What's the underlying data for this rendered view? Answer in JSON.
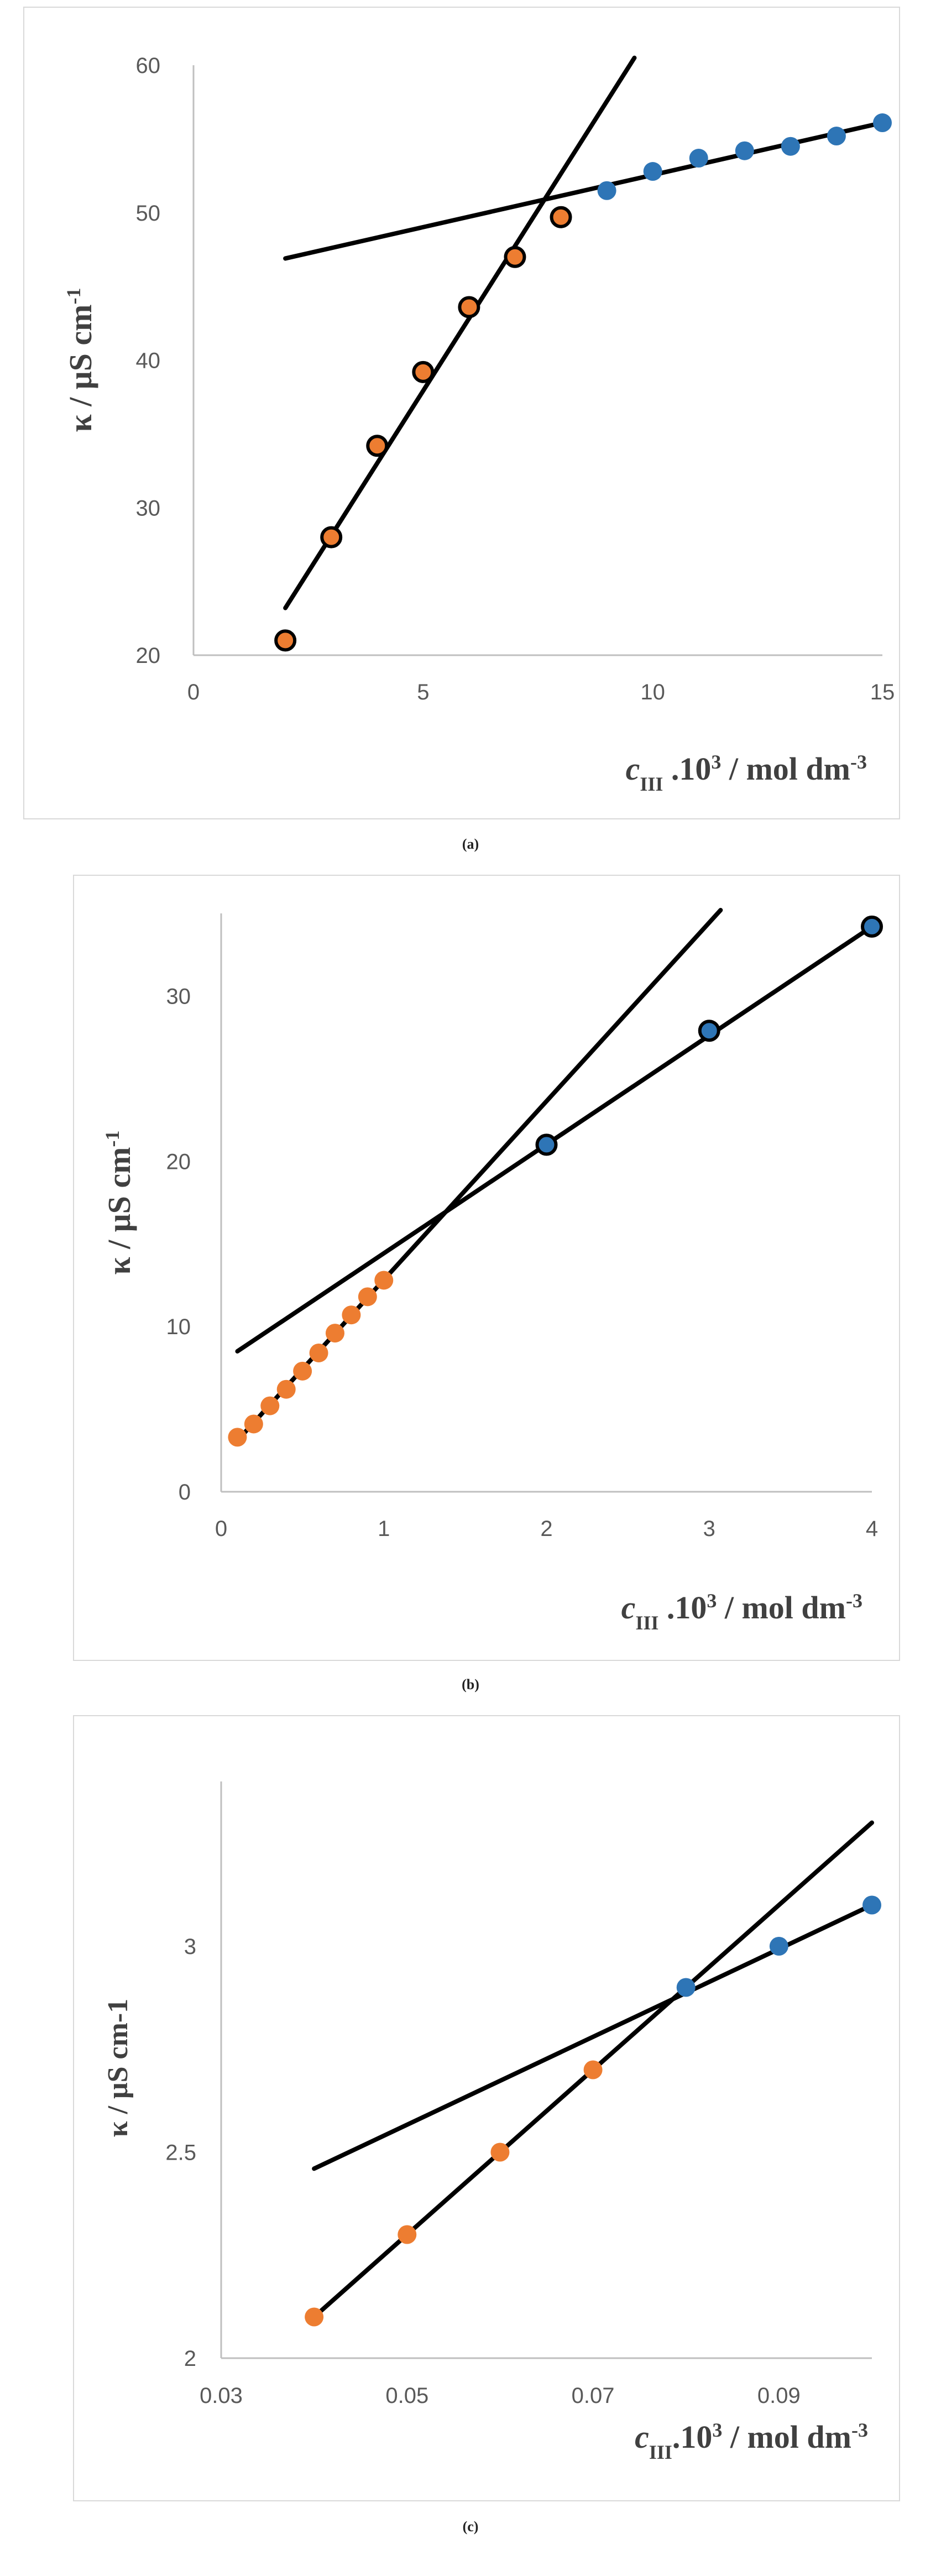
{
  "chart_data": [
    {
      "type": "scatter",
      "panel_label": "(a)",
      "xlim": [
        0,
        15
      ],
      "ylim": [
        20,
        60
      ],
      "x_ticks": [
        0,
        5,
        10,
        15
      ],
      "y_ticks": [
        20,
        30,
        40,
        50,
        60
      ],
      "y_axis_label": {
        "pre": "κ / μS cm",
        "sup": "-1"
      },
      "x_axis_label": {
        "c": "c",
        "sub": "III",
        "mid": " .10",
        "sup1": "3",
        "unit": " / mol dm",
        "sup2": "-3"
      },
      "grid": false,
      "series": [
        {
          "color": "#ED7D31",
          "edge": "#000000",
          "x": [
            2,
            3,
            4,
            5,
            6,
            7,
            8
          ],
          "y": [
            21,
            28,
            34.2,
            39.2,
            43.6,
            47,
            49.7
          ]
        },
        {
          "color": "#2E75B6",
          "edge": "#2E75B6",
          "x": [
            9,
            10,
            11,
            12,
            13,
            14,
            15
          ],
          "y": [
            51.5,
            52.8,
            53.7,
            54.2,
            54.5,
            55.2,
            56.1
          ]
        }
      ],
      "trendlines": [
        {
          "x": [
            2,
            9.6
          ],
          "y": [
            23.2,
            60.5
          ]
        },
        {
          "x": [
            2,
            15
          ],
          "y": [
            46.9,
            56.1
          ]
        }
      ]
    },
    {
      "type": "scatter",
      "panel_label": "(b)",
      "xlim": [
        0,
        4
      ],
      "ylim": [
        0,
        35
      ],
      "x_ticks": [
        0,
        1,
        2,
        3,
        4
      ],
      "y_ticks": [
        0,
        10,
        20,
        30
      ],
      "y_axis_label": {
        "pre": "κ / μS cm",
        "sup": "-1"
      },
      "x_axis_label": {
        "c": "c",
        "sub": "III",
        "mid": " .10",
        "sup1": "3",
        "unit": " / mol dm",
        "sup2": "-3"
      },
      "grid": false,
      "series": [
        {
          "color": "#ED7D31",
          "edge": "#ED7D31",
          "x": [
            0.1,
            0.2,
            0.3,
            0.4,
            0.5,
            0.6,
            0.7,
            0.8,
            0.9,
            1.0
          ],
          "y": [
            3.3,
            4.1,
            5.2,
            6.2,
            7.3,
            8.4,
            9.6,
            10.7,
            11.8,
            12.8
          ]
        },
        {
          "color": "#2E75B6",
          "edge": "#000000",
          "x": [
            2,
            3,
            4
          ],
          "y": [
            21,
            27.9,
            34.2
          ]
        }
      ],
      "trendlines": [
        {
          "x": [
            0.1,
            3.07
          ],
          "y": [
            3.1,
            35.2
          ]
        },
        {
          "x": [
            0.1,
            4
          ],
          "y": [
            8.5,
            34.2
          ]
        }
      ]
    },
    {
      "type": "scatter",
      "panel_label": "(c)",
      "xlim": [
        0.03,
        0.1
      ],
      "ylim": [
        2,
        3.4
      ],
      "x_ticks": [
        "0.03",
        "0.05",
        "0.07",
        "0.09"
      ],
      "x_tick_values": [
        0.03,
        0.05,
        0.07,
        0.09
      ],
      "y_ticks": [
        "2",
        "2.5",
        "3"
      ],
      "y_tick_values": [
        2,
        2.5,
        3
      ],
      "y_axis_label": {
        "pre": "κ   / μS cm-1",
        "sup": ""
      },
      "x_axis_label": {
        "c": "c",
        "sub": "III",
        "mid": ".10",
        "sup1": "3",
        "unit": " / mol dm",
        "sup2": "-3"
      },
      "grid": false,
      "series": [
        {
          "color": "#ED7D31",
          "edge": "#ED7D31",
          "x": [
            0.04,
            0.05,
            0.06,
            0.07
          ],
          "y": [
            2.1,
            2.3,
            2.5,
            2.7
          ]
        },
        {
          "color": "#2E75B6",
          "edge": "#2E75B6",
          "x": [
            0.08,
            0.09,
            0.1
          ],
          "y": [
            2.9,
            3.0,
            3.1
          ]
        }
      ],
      "trendlines": [
        {
          "x": [
            0.04,
            0.1
          ],
          "y": [
            2.1,
            3.3
          ]
        },
        {
          "x": [
            0.04,
            0.1
          ],
          "y": [
            2.46,
            3.1
          ]
        }
      ]
    }
  ]
}
